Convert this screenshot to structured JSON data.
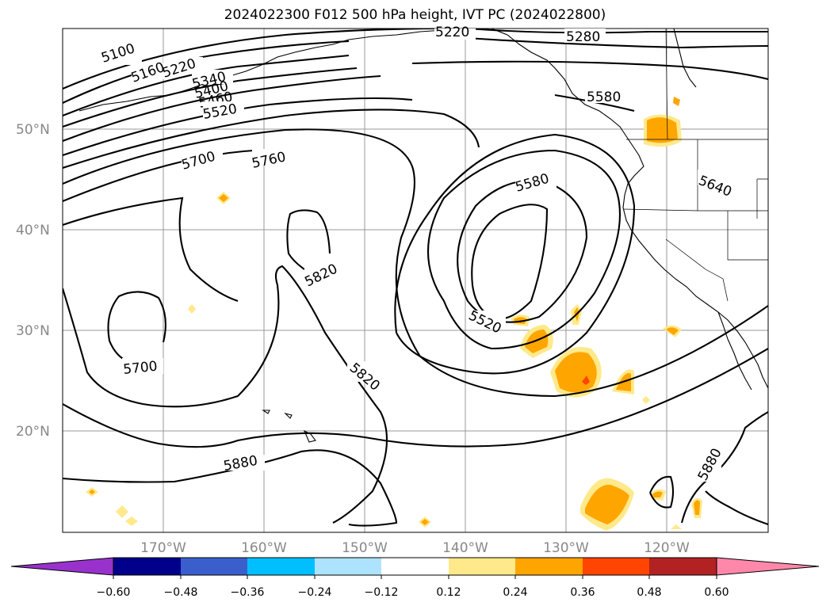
{
  "title": "2024022300 F012 500 hPa height, IVT PC (2024022800)",
  "map": {
    "projection": "cylindrical",
    "lon_range": [
      180,
      110
    ],
    "lat_range": [
      10,
      60
    ],
    "lon_ticks": [
      "170°W",
      "160°W",
      "150°W",
      "140°W",
      "130°W",
      "120°W"
    ],
    "lat_ticks": [
      "50°N",
      "40°N",
      "30°N",
      "20°N"
    ],
    "grid": true,
    "contour_field": "500 hPa height",
    "shaded_field": "IVT PC"
  },
  "contour_labels": [
    "5100",
    "5160",
    "5220",
    "5340",
    "5400",
    "5460",
    "5520",
    "5580",
    "5640",
    "5700",
    "5760",
    "5820",
    "5880",
    "5220",
    "5280",
    "5580",
    "5520",
    "5700",
    "5820",
    "5880"
  ],
  "colorbar": {
    "ticks": [
      "−0.60",
      "−0.48",
      "−0.36",
      "−0.24",
      "−0.12",
      "0.12",
      "0.24",
      "0.36",
      "0.48",
      "0.60"
    ],
    "colors": [
      "#9932cc",
      "#00008b",
      "#3a5fcd",
      "#00bfff",
      "#aee3ff",
      "#ffffff",
      "#ffe98a",
      "#ffa500",
      "#ff4500",
      "#b22222",
      "#ff88aa"
    ],
    "extend": "both"
  }
}
